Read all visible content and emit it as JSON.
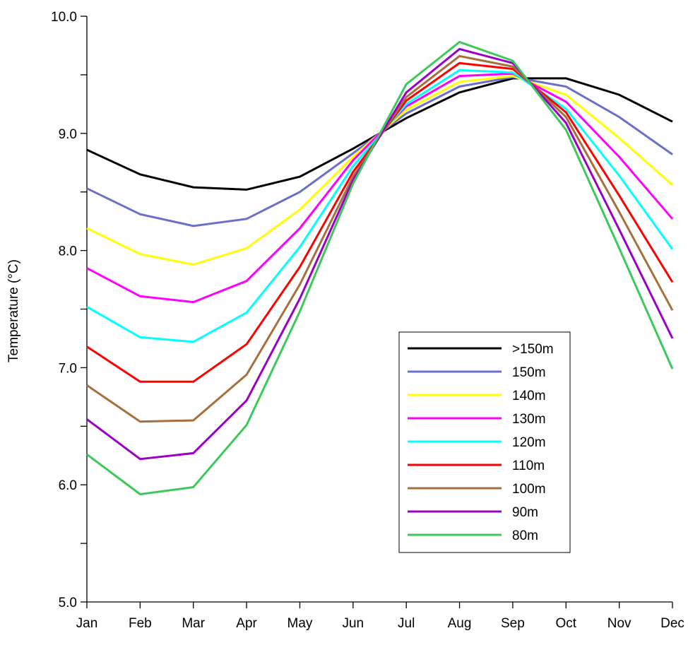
{
  "chart_data": {
    "type": "line",
    "title": "",
    "xlabel": "",
    "ylabel": "Temperature (°C)",
    "categories": [
      "Jan",
      "Feb",
      "Mar",
      "Apr",
      "May",
      "Jun",
      "Jul",
      "Aug",
      "Sep",
      "Oct",
      "Nov",
      "Dec"
    ],
    "ylim": [
      5.0,
      10.0
    ],
    "yticks": [
      {
        "value": 5.0,
        "label": "5.0"
      },
      {
        "value": 6.0,
        "label": "6.0"
      },
      {
        "value": 7.0,
        "label": "7.0"
      },
      {
        "value": 8.0,
        "label": "8.0"
      },
      {
        "value": 9.0,
        "label": "9.0"
      },
      {
        "value": 10.0,
        "label": "10.0"
      }
    ],
    "yminor_step": 0.5,
    "grid": false,
    "legend_position": "lower-right",
    "series": [
      {
        "name": ">150m",
        "color": "#000000",
        "values": [
          8.86,
          8.65,
          8.54,
          8.52,
          8.63,
          8.87,
          9.13,
          9.35,
          9.47,
          9.47,
          9.33,
          9.1
        ]
      },
      {
        "name": "150m",
        "color": "#6a6fca",
        "values": [
          8.53,
          8.31,
          8.21,
          8.27,
          8.5,
          8.83,
          9.17,
          9.4,
          9.48,
          9.4,
          9.14,
          8.82
        ]
      },
      {
        "name": "140m",
        "color": "#ffff00",
        "values": [
          8.19,
          7.97,
          7.88,
          8.02,
          8.35,
          8.8,
          9.2,
          9.44,
          9.49,
          9.33,
          8.96,
          8.56
        ]
      },
      {
        "name": "130m",
        "color": "#ff00ff",
        "values": [
          7.85,
          7.61,
          7.56,
          7.74,
          8.19,
          8.77,
          9.23,
          9.49,
          9.51,
          9.27,
          8.8,
          8.27
        ]
      },
      {
        "name": "120m",
        "color": "#00ffff",
        "values": [
          7.52,
          7.26,
          7.22,
          7.47,
          8.03,
          8.72,
          9.25,
          9.54,
          9.52,
          9.21,
          8.64,
          8.01
        ]
      },
      {
        "name": "110m",
        "color": "#ff0000",
        "values": [
          7.18,
          6.88,
          6.88,
          7.2,
          7.86,
          8.67,
          9.28,
          9.6,
          9.55,
          9.18,
          8.47,
          7.73
        ]
      },
      {
        "name": "100m",
        "color": "#a5703d",
        "values": [
          6.85,
          6.54,
          6.55,
          6.94,
          7.71,
          8.63,
          9.31,
          9.66,
          9.57,
          9.14,
          8.33,
          7.49
        ]
      },
      {
        "name": "90m",
        "color": "#9b00c8",
        "values": [
          6.56,
          6.22,
          6.27,
          6.72,
          7.59,
          8.6,
          9.35,
          9.72,
          9.6,
          9.09,
          8.18,
          7.25
        ]
      },
      {
        "name": "80m",
        "color": "#3cc85a",
        "values": [
          6.26,
          5.92,
          5.98,
          6.51,
          7.48,
          8.57,
          9.42,
          9.78,
          9.62,
          9.03,
          8.02,
          6.99
        ]
      }
    ]
  }
}
